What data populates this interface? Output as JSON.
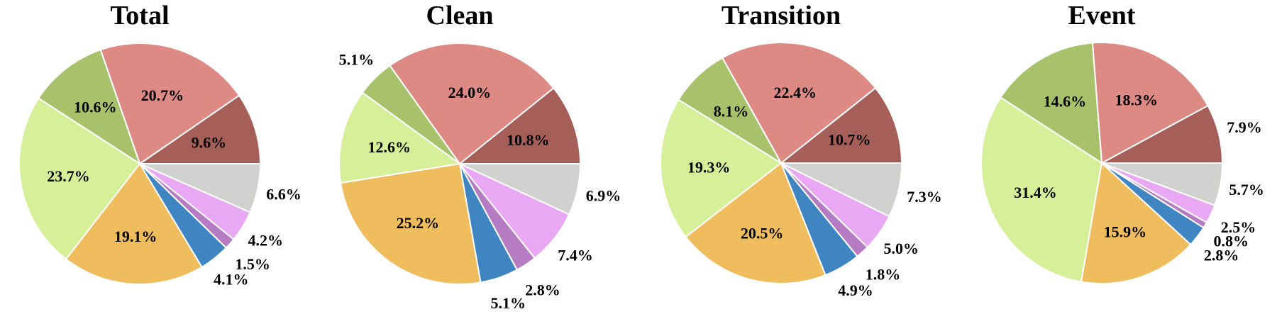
{
  "chart_data": [
    {
      "type": "pie",
      "title": "Total",
      "slices": [
        {
          "value": 9.6,
          "label": "9.6%",
          "color": "#a65f58"
        },
        {
          "value": 20.7,
          "label": "20.7%",
          "color": "#dc8a83"
        },
        {
          "value": 10.6,
          "label": "10.6%",
          "color": "#a8c26c"
        },
        {
          "value": 23.7,
          "label": "23.7%",
          "color": "#d6f099"
        },
        {
          "value": 19.1,
          "label": "19.1%",
          "color": "#f0bd5e"
        },
        {
          "value": 4.1,
          "label": "4.1%",
          "color": "#3e85c1"
        },
        {
          "value": 1.5,
          "label": "1.5%",
          "color": "#b57cc4"
        },
        {
          "value": 4.2,
          "label": "4.2%",
          "color": "#e8a8f3"
        },
        {
          "value": 6.6,
          "label": "6.6%",
          "color": "#d1d1cf"
        }
      ]
    },
    {
      "type": "pie",
      "title": "Clean",
      "slices": [
        {
          "value": 10.8,
          "label": "10.8%",
          "color": "#a65f58"
        },
        {
          "value": 24.0,
          "label": "24.0%",
          "color": "#dc8a83"
        },
        {
          "value": 5.1,
          "label": "5.1%",
          "color": "#a8c26c"
        },
        {
          "value": 12.6,
          "label": "12.6%",
          "color": "#d6f099"
        },
        {
          "value": 25.2,
          "label": "25.2%",
          "color": "#f0bd5e"
        },
        {
          "value": 5.1,
          "label": "5.1%",
          "color": "#3e85c1"
        },
        {
          "value": 2.8,
          "label": "2.8%",
          "color": "#b57cc4"
        },
        {
          "value": 7.4,
          "label": "7.4%",
          "color": "#e8a8f3"
        },
        {
          "value": 6.9,
          "label": "6.9%",
          "color": "#d1d1cf"
        }
      ]
    },
    {
      "type": "pie",
      "title": "Transition",
      "slices": [
        {
          "value": 10.7,
          "label": "10.7%",
          "color": "#a65f58"
        },
        {
          "value": 22.4,
          "label": "22.4%",
          "color": "#dc8a83"
        },
        {
          "value": 8.1,
          "label": "8.1%",
          "color": "#a8c26c"
        },
        {
          "value": 19.3,
          "label": "19.3%",
          "color": "#d6f099"
        },
        {
          "value": 20.5,
          "label": "20.5%",
          "color": "#f0bd5e"
        },
        {
          "value": 4.9,
          "label": "4.9%",
          "color": "#3e85c1"
        },
        {
          "value": 1.8,
          "label": "1.8%",
          "color": "#b57cc4"
        },
        {
          "value": 5.0,
          "label": "5.0%",
          "color": "#e8a8f3"
        },
        {
          "value": 7.3,
          "label": "7.3%",
          "color": "#d1d1cf"
        }
      ]
    },
    {
      "type": "pie",
      "title": "Event",
      "slices": [
        {
          "value": 7.9,
          "label": "7.9%",
          "color": "#a65f58"
        },
        {
          "value": 18.3,
          "label": "18.3%",
          "color": "#dc8a83"
        },
        {
          "value": 14.6,
          "label": "14.6%",
          "color": "#a8c26c"
        },
        {
          "value": 31.4,
          "label": "31.4%",
          "color": "#d6f099"
        },
        {
          "value": 15.9,
          "label": "15.9%",
          "color": "#f0bd5e"
        },
        {
          "value": 2.8,
          "label": "2.8%",
          "color": "#3e85c1"
        },
        {
          "value": 0.8,
          "label": "0.8%",
          "color": "#b57cc4"
        },
        {
          "value": 2.5,
          "label": "2.5%",
          "color": "#e8a8f3"
        },
        {
          "value": 5.7,
          "label": "5.7%",
          "color": "#d1d1cf"
        }
      ]
    }
  ]
}
